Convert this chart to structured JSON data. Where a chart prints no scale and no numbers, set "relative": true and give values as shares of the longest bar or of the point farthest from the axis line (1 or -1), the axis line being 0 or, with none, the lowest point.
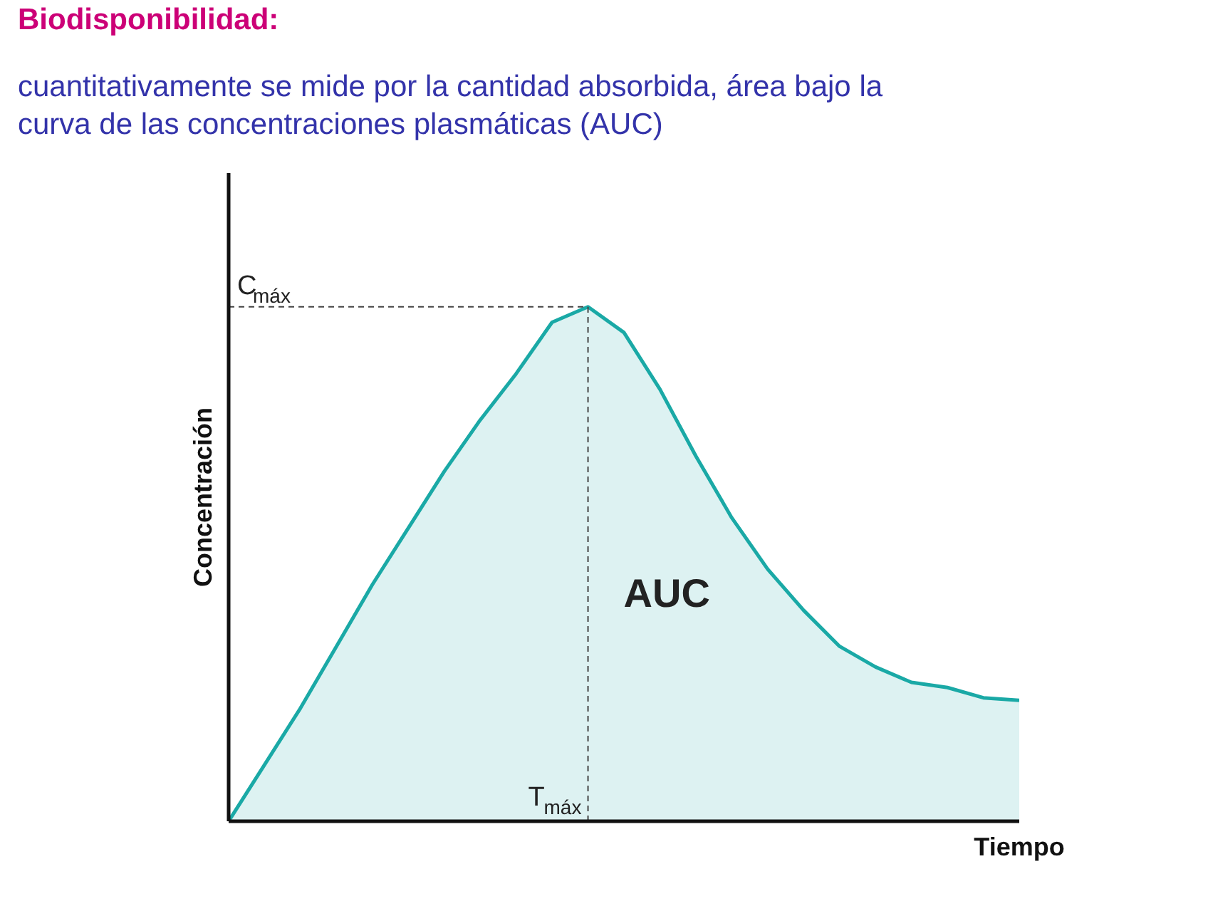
{
  "chart_data": {
    "type": "area",
    "title": "Biodisponibilidad:",
    "subtitle": "cuantitativamente se mide por la cantidad absorbida, área bajo la curva de las concentraciones plasmáticas (AUC)",
    "xlabel": "Tiempo",
    "ylabel": "Concentración",
    "relative": true,
    "categories": [
      null,
      null,
      null,
      null,
      null,
      null,
      null,
      null,
      null,
      null,
      null,
      null,
      null,
      null,
      null,
      null,
      null,
      null,
      null,
      null,
      null,
      null,
      null
    ],
    "series": [
      {
        "color": "#1aa9a6",
        "values": [
          0,
          0.11,
          0.22,
          0.34,
          0.46,
          0.57,
          0.68,
          0.78,
          0.87,
          0.97,
          1.0,
          0.95,
          0.84,
          0.71,
          0.59,
          0.49,
          0.41,
          0.34,
          0.3,
          0.27,
          0.26,
          0.24,
          0.235
        ]
      }
    ],
    "ref_lines": [
      {
        "axis": "y",
        "value": 1,
        "label": "C$_{máx}$",
        "line_style": "dashed"
      }
    ],
    "annotations": [
      "AUC",
      "T$_{máx}$"
    ],
    "grid": false
  }
}
